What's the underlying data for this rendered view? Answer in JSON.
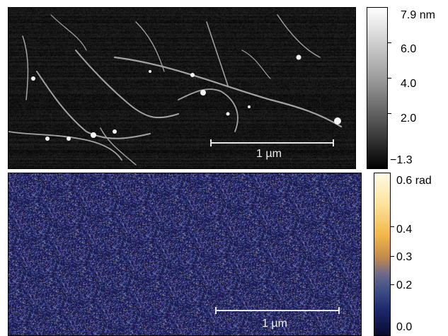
{
  "top_image": {
    "scalebar_label": "1 µm",
    "colorbar": {
      "max_label": "7.9 nm",
      "ticks": [
        "6.0",
        "4.0",
        "2.0"
      ],
      "min_label": "−1.3"
    }
  },
  "bottom_image": {
    "scalebar_label": "1 µm",
    "colorbar": {
      "max_label": "0.6 rad",
      "ticks": [
        "0.4",
        "0.3",
        "0.2"
      ],
      "min_label": "0.0"
    }
  }
}
